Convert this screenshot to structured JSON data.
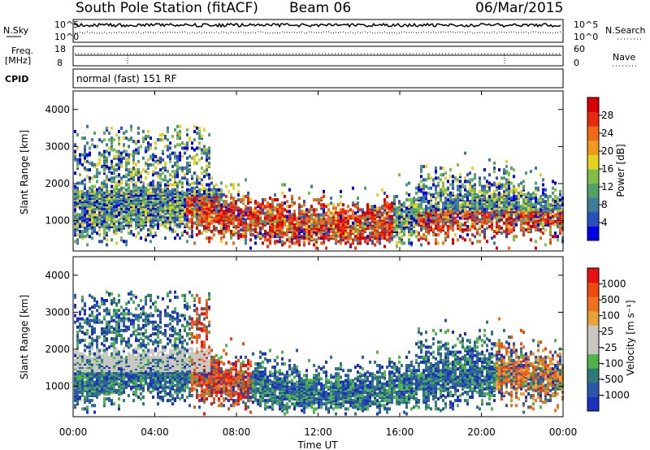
{
  "header": {
    "station": "South Pole Station (fitACF)",
    "beam": "Beam 06",
    "date": "06/Mar/2015"
  },
  "top_panels": {
    "nsky_label": "N.Sky",
    "nsearch_label": "N.Search",
    "nsky_ticks": [
      "10^5",
      "10^0"
    ],
    "nsearch_ticks": [
      "10^5",
      "10^0"
    ],
    "freq_label_line1": "Freq.",
    "freq_label_line2": "[MHz]",
    "freq_ticks": [
      "18",
      "8"
    ],
    "nave_label": "Nave",
    "nave_ticks": [
      "60",
      "0"
    ],
    "cpid_label": "CPID",
    "cpid_text": "normal (fast) 151 RF"
  },
  "chart_data": [
    {
      "type": "heatmap",
      "title": "",
      "xlabel": "",
      "ylabel": "Slant Range [km]",
      "ylim": [
        180,
        4500
      ],
      "y_ticks": [
        "1000",
        "2000",
        "3000",
        "4000"
      ],
      "x_ticks": [
        "00:00",
        "04:00",
        "08:00",
        "12:00",
        "16:00",
        "20:00",
        "00:00"
      ],
      "colorbar_label": "Power [dB]",
      "colorbar_ticks": [
        "4",
        "8",
        "12",
        "16",
        "20",
        "24",
        "28"
      ],
      "colorscale": [
        "#0000e8",
        "#2a4fbe",
        "#3f7b9a",
        "#52a06a",
        "#7fbf48",
        "#e6d21e",
        "#f09a20",
        "#f26a18",
        "#e82a10",
        "#d80000"
      ]
    },
    {
      "type": "heatmap",
      "title": "",
      "xlabel": "Time UT",
      "ylabel": "Slant Range [km]",
      "ylim": [
        180,
        4500
      ],
      "y_ticks": [
        "1000",
        "2000",
        "3000",
        "4000"
      ],
      "x_ticks": [
        "00:00",
        "04:00",
        "08:00",
        "12:00",
        "16:00",
        "20:00",
        "00:00"
      ],
      "colorbar_label": "Velocity [m s⁻¹]",
      "colorbar_ticks": [
        "1000",
        "500",
        "100",
        "25",
        "-25",
        "-100",
        "-500",
        "-1000"
      ],
      "colorscale": [
        "#1c2fbf",
        "#2a58a8",
        "#2f7a78",
        "#4fb34a",
        "#c8c8c0",
        "#c8c8c0",
        "#e8a23a",
        "#f07020",
        "#ee4a10",
        "#e81010"
      ]
    }
  ]
}
